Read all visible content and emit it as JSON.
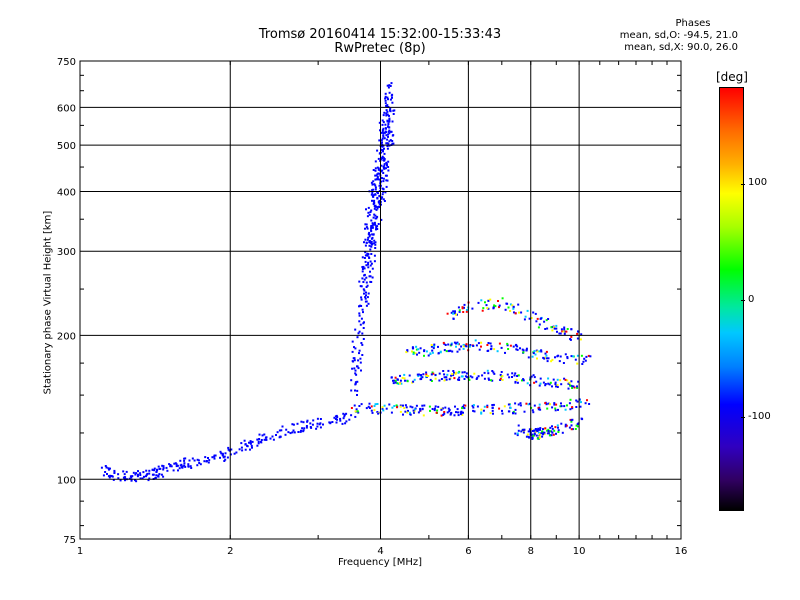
{
  "header": {
    "title_line1": "Tromsø 20160414 15:32:00-15:33:43",
    "title_line2": "RwPretec (8p)"
  },
  "phase_info": {
    "title": "Phases",
    "line_o": "mean, sd,O: -94.5, 21.0",
    "line_x": "mean, sd,X:  90.0, 26.0"
  },
  "colorbar": {
    "title": "[deg]",
    "labels": [
      "100",
      "0",
      "-100"
    ],
    "colors": [
      "#ff0000",
      "#ffff00",
      "#00ff00",
      "#00c8ff",
      "#0000ff",
      "#000000"
    ]
  },
  "chart_data": {
    "type": "scatter",
    "title": "Tromsø 20160414 15:32:00-15:33:43",
    "subtitle": "RwPretec (8p)",
    "xlabel": "Frequency [MHz]",
    "ylabel": "Stationary phase Virtual Height [km]",
    "x_scale": "log",
    "y_scale": "log",
    "xlim": [
      1,
      16
    ],
    "ylim": [
      75,
      750
    ],
    "x_ticks": [
      1,
      2,
      4,
      6,
      8,
      10,
      16
    ],
    "x_tick_labels": [
      "1",
      "2",
      "4",
      "6",
      "8",
      "10",
      "16"
    ],
    "y_ticks": [
      75,
      100,
      200,
      300,
      400,
      500,
      600,
      750
    ],
    "y_tick_labels": [
      "75",
      "100",
      "200",
      "300",
      "400",
      "500",
      "600",
      "750"
    ],
    "grid": true,
    "color_scale": "phase [deg]",
    "traces": [
      {
        "name": "",
        "x": [
          1.1,
          1.2,
          1.3,
          1.4,
          1.5,
          1.6,
          1.8,
          2.0,
          2.2,
          2.5,
          2.8,
          3.2,
          3.5
        ],
        "y": [
          105,
          102,
          102,
          103,
          106,
          108,
          110,
          114,
          120,
          126,
          130,
          133,
          136
        ]
      },
      {
        "name": "",
        "x": [
          3.5,
          3.7,
          3.8,
          3.9,
          4.0,
          4.1,
          4.2
        ],
        "y": [
          150,
          250,
          320,
          380,
          450,
          520,
          600
        ]
      },
      {
        "name": "",
        "x": [
          3.5,
          4.0,
          4.5,
          5.0,
          5.5,
          6.0,
          7.0,
          8.0,
          9.0,
          10.5
        ],
        "y": [
          142,
          141,
          140,
          140,
          140,
          140,
          141,
          142,
          143,
          145
        ]
      },
      {
        "name": "",
        "x": [
          4.2,
          4.5,
          5.0,
          5.5,
          6.0,
          7.0,
          8.0,
          9.0,
          10.0
        ],
        "y": [
          162,
          163,
          165,
          166,
          166,
          165,
          162,
          160,
          158
        ]
      },
      {
        "name": "",
        "x": [
          4.5,
          5.0,
          5.5,
          6.0,
          7.0,
          8.0,
          9.0,
          10.5
        ],
        "y": [
          185,
          187,
          190,
          192,
          190,
          185,
          180,
          178
        ]
      },
      {
        "name": "",
        "x": [
          5.5,
          6.0,
          7.0,
          8.0,
          9.0,
          10.0
        ],
        "y": [
          220,
          230,
          235,
          220,
          205,
          200
        ]
      },
      {
        "name": "",
        "x": [
          7.5,
          8.0,
          8.2,
          8.5,
          9.0,
          10.0
        ],
        "y": [
          128,
          125,
          125,
          126,
          128,
          132
        ]
      }
    ]
  }
}
